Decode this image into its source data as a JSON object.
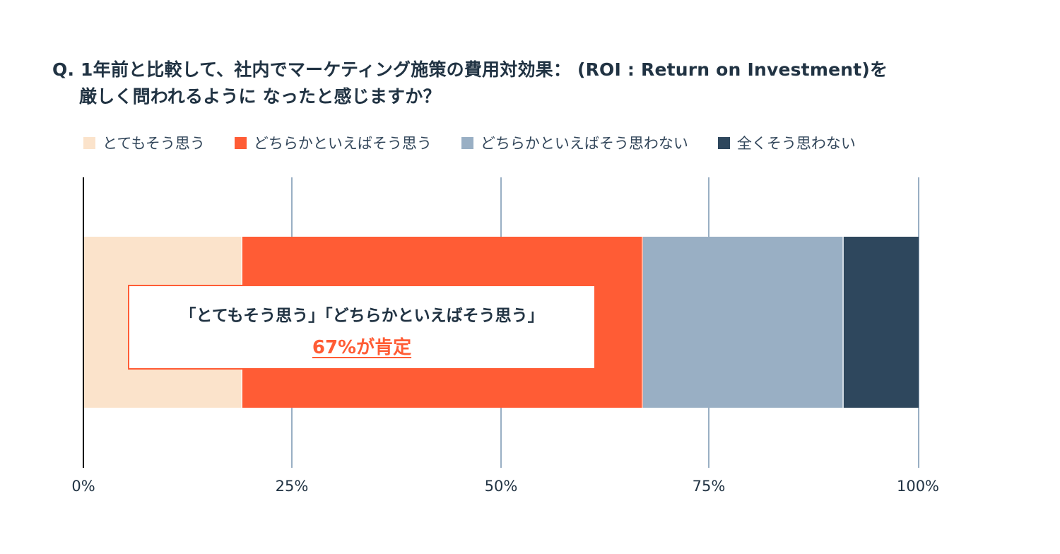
{
  "chart_data": {
    "type": "bar",
    "orientation": "horizontal-stacked-100",
    "title": "Q. 1年前と比較して、社内でマーケティング施策の費用対効果： (ROI : Return on Investment)を 厳しく問われるように なったと感じますか？",
    "title_lines": [
      "Q. 1年前と比較して、社内でマーケティング施策の費用対効果： (ROI : Return on Investment)を",
      "厳しく問われるように なったと感じますか？"
    ],
    "categories": [
      ""
    ],
    "series": [
      {
        "name": "とてもそう思う",
        "color": "#fbe3cb",
        "values": [
          19
        ]
      },
      {
        "name": "どちらかといえばそう思う",
        "color": "#ff5c35",
        "values": [
          48
        ]
      },
      {
        "name": "どちらかといえばそう思わない",
        "color": "#99afc4",
        "values": [
          24
        ]
      },
      {
        "name": "全くそう思わない",
        "color": "#2e475d",
        "values": [
          9
        ]
      }
    ],
    "xlabel": "",
    "ylabel": "",
    "xlim": [
      0,
      100
    ],
    "x_ticks": [
      "0%",
      "25%",
      "50%",
      "75%",
      "100%"
    ],
    "grid": true,
    "legend_position": "top",
    "annotation": {
      "line1": "「とてもそう思う」「どちらかといえばそう思う」",
      "line2": "67%が肯定",
      "accent_color": "#ff5c35"
    }
  }
}
